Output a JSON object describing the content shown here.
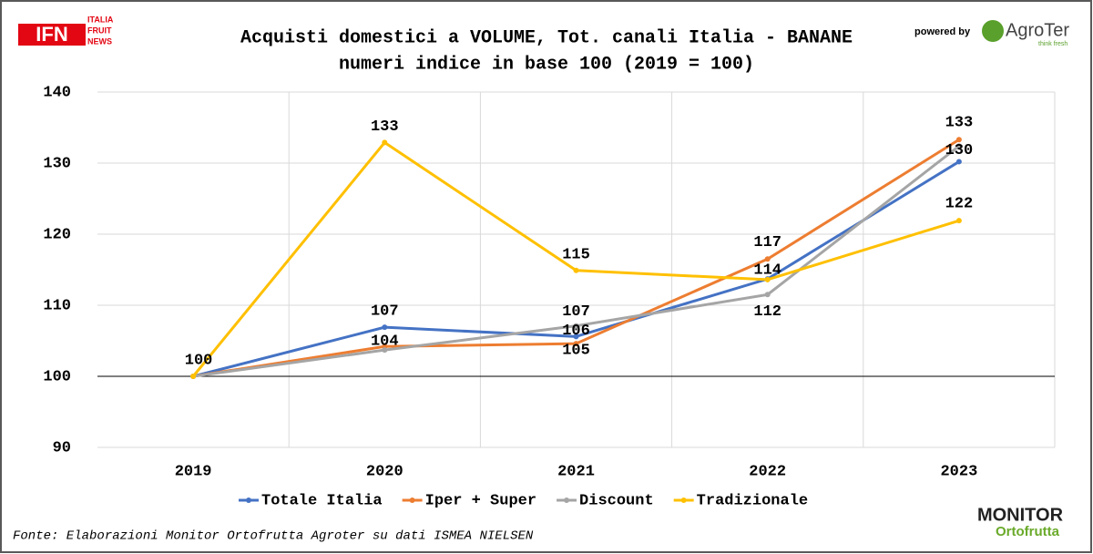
{
  "chart_data": {
    "type": "line",
    "title": "Acquisti domestici a VOLUME, Tot. canali Italia - BANANE",
    "subtitle": "numeri indice in base 100 (2019 = 100)",
    "categories": [
      "2019",
      "2020",
      "2021",
      "2022",
      "2023"
    ],
    "series": [
      {
        "name": "Totale Italia",
        "color": "#4472c4",
        "values": [
          100,
          106.9,
          105.6,
          113.7,
          130.2
        ],
        "value_labels": [
          "100",
          "107",
          "106",
          "114",
          "130"
        ]
      },
      {
        "name": "Iper + Super",
        "color": "#ed7d31",
        "values": [
          100,
          104.2,
          104.6,
          116.5,
          133.3
        ],
        "value_labels": [
          null,
          "104",
          "105",
          "117",
          "133"
        ]
      },
      {
        "name": "Discount",
        "color": "#a5a5a5",
        "values": [
          100,
          103.7,
          107.1,
          111.5,
          132.4
        ],
        "value_labels": [
          null,
          null,
          "107",
          "112",
          null
        ]
      },
      {
        "name": "Tradizionale",
        "color": "#ffc000",
        "values": [
          100,
          132.9,
          114.9,
          113.6,
          121.9
        ],
        "value_labels": [
          null,
          "133",
          "115",
          null,
          "122"
        ]
      }
    ],
    "ylim": [
      90,
      140
    ],
    "yticks": [
      90,
      100,
      110,
      120,
      130,
      140
    ],
    "grid": true,
    "legend": "bottom",
    "source": "Fonte: Elaborazioni Monitor Ortofrutta Agroter su dati ISMEA NIELSEN"
  },
  "branding": {
    "left_logo": "IFN",
    "left_logo_lines": [
      "ITALIA",
      "FRUIT",
      "NEWS"
    ],
    "powered_by": "powered by",
    "right_logo": "AgroTer",
    "right_logo_tag": "think fresh",
    "bottom_logo": "MONITOR",
    "bottom_logo_tag": "Ortofrutta"
  }
}
